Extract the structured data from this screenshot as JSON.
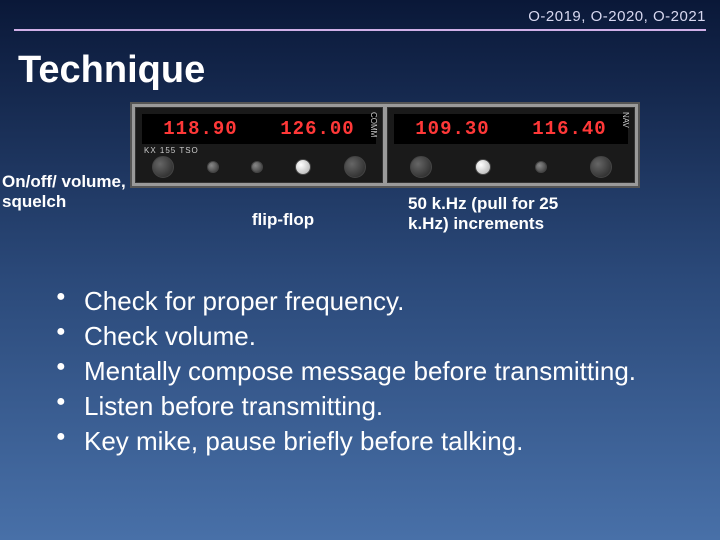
{
  "header": {
    "codes": "O-2019, O-2020, O-2021"
  },
  "title": "Technique",
  "radio": {
    "left_panel": {
      "freq_a": "118.90",
      "freq_b": "126.00",
      "digit_color": "#ff3838",
      "sub": "KX 155 TSO",
      "corner": "COMM"
    },
    "right_panel": {
      "freq_a": "109.30",
      "freq_b": "116.40",
      "digit_color": "#ff3838",
      "corner": "NAV"
    }
  },
  "callouts": {
    "left": "On/off/ volume, squelch",
    "mid": "flip-flop",
    "right": "50 k.Hz (pull for 25 k.Hz) increments"
  },
  "bullets": [
    "Check for proper frequency.",
    "Check volume.",
    "Mentally compose message before transmitting.",
    "Listen before transmitting.",
    "Key mike, pause briefly before talking."
  ],
  "colors": {
    "hr": "#d0b0e8",
    "bg_top": "#0a1838",
    "bg_bot": "#4870a8"
  }
}
